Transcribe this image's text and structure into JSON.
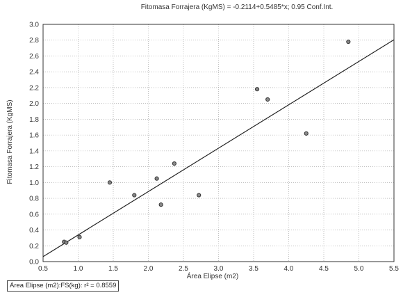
{
  "chart_data": {
    "type": "scatter",
    "title": "Fitomasa Forrajera (KgMS) = -0.2114+0.5485*x; 0.95 Conf.Int.",
    "xlabel": "Área Elipse (m2)",
    "ylabel": "Fitomasa Forrajera (KgMS)",
    "xlim": [
      0.5,
      5.5
    ],
    "ylim": [
      0.0,
      3.0
    ],
    "xticks": [
      "0.5",
      "1.0",
      "1.5",
      "2.0",
      "2.5",
      "3.0",
      "3.5",
      "4.0",
      "4.5",
      "5.0",
      "5.5"
    ],
    "yticks": [
      "0.0",
      "0.2",
      "0.4",
      "0.6",
      "0.8",
      "1.0",
      "1.2",
      "1.4",
      "1.6",
      "1.8",
      "2.0",
      "2.2",
      "2.4",
      "2.6",
      "2.8",
      "3.0"
    ],
    "grid": true,
    "regression": {
      "intercept": -0.2114,
      "slope": 0.5485
    },
    "points": [
      {
        "x": 0.8,
        "y": 0.25
      },
      {
        "x": 0.83,
        "y": 0.24
      },
      {
        "x": 1.02,
        "y": 0.31
      },
      {
        "x": 1.45,
        "y": 1.0
      },
      {
        "x": 1.8,
        "y": 0.84
      },
      {
        "x": 2.12,
        "y": 1.05
      },
      {
        "x": 2.18,
        "y": 0.72
      },
      {
        "x": 2.37,
        "y": 1.24
      },
      {
        "x": 2.72,
        "y": 0.84
      },
      {
        "x": 3.55,
        "y": 2.18
      },
      {
        "x": 3.7,
        "y": 2.05
      },
      {
        "x": 4.25,
        "y": 1.62
      },
      {
        "x": 4.85,
        "y": 2.78
      }
    ],
    "legend": {
      "text": "Área Elipse (m2):FS(kg):  r² = 0.8559",
      "placement": "bottom-left"
    },
    "colors": {
      "line": "#222222",
      "point_fill": "#888888",
      "point_stroke": "#333333",
      "grid": "#9a9a9a"
    }
  }
}
